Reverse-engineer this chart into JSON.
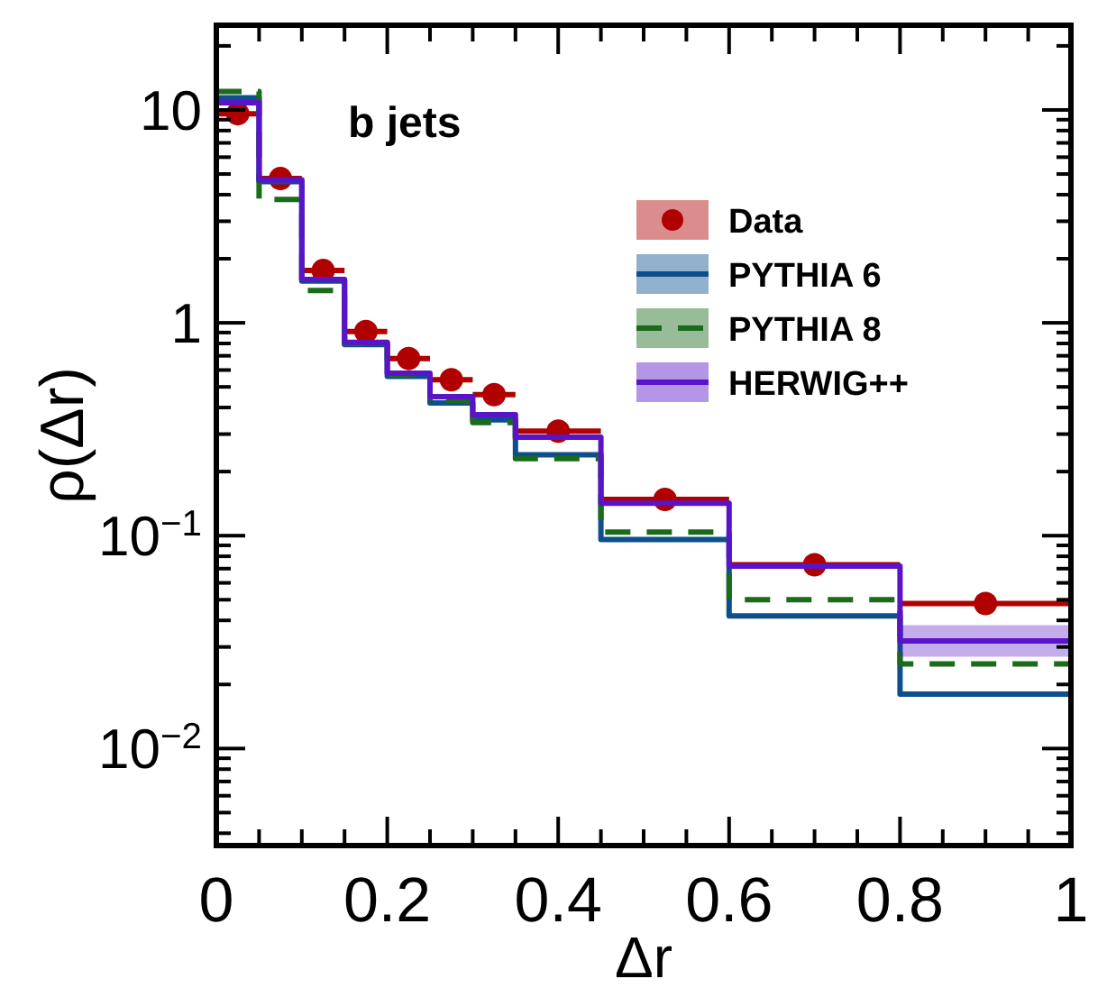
{
  "chart_data": {
    "type": "step",
    "annotations": [
      "b jets"
    ],
    "xlabel": "Δr",
    "ylabel": "ρ(Δr)",
    "xlim": [
      0,
      1
    ],
    "ylim": [
      0.0035,
      25
    ],
    "log": "y",
    "legend": "right",
    "grid": false,
    "xticks": [
      0,
      {
        "value": 0.05,
        "label": null
      },
      {
        "value": 0.1,
        "label": null
      },
      {
        "value": 0.15,
        "label": null
      },
      0.2,
      {
        "value": 0.25,
        "label": null
      },
      {
        "value": 0.3,
        "label": null
      },
      {
        "value": 0.35,
        "label": null
      },
      0.4,
      {
        "value": 0.45,
        "label": null
      },
      {
        "value": 0.5,
        "label": null
      },
      {
        "value": 0.55,
        "label": null
      },
      0.6,
      {
        "value": 0.65,
        "label": null
      },
      {
        "value": 0.7,
        "label": null
      },
      {
        "value": 0.75,
        "label": null
      },
      0.8,
      {
        "value": 0.85,
        "label": null
      },
      {
        "value": 0.9,
        "label": null
      },
      {
        "value": 0.95,
        "label": null
      },
      1
    ],
    "yticks": [
      {
        "value": 0.004,
        "label": null
      },
      {
        "value": 0.005,
        "label": null
      },
      {
        "value": 0.006,
        "label": null
      },
      {
        "value": 0.007,
        "label": null
      },
      {
        "value": 0.008,
        "label": null
      },
      {
        "value": 0.009,
        "label": null
      },
      {
        "value": 0.01,
        "label": "10$^{−2}$"
      },
      {
        "value": 0.02,
        "label": null
      },
      {
        "value": 0.03,
        "label": null
      },
      {
        "value": 0.04,
        "label": null
      },
      {
        "value": 0.05,
        "label": null
      },
      {
        "value": 0.06,
        "label": null
      },
      {
        "value": 0.07,
        "label": null
      },
      {
        "value": 0.08,
        "label": null
      },
      {
        "value": 0.09,
        "label": null
      },
      {
        "value": 0.1,
        "label": "10$^{−1}$"
      },
      {
        "value": 0.2,
        "label": null
      },
      {
        "value": 0.3,
        "label": null
      },
      {
        "value": 0.4,
        "label": null
      },
      {
        "value": 0.5,
        "label": null
      },
      {
        "value": 0.6,
        "label": null
      },
      {
        "value": 0.7,
        "label": null
      },
      {
        "value": 0.8,
        "label": null
      },
      {
        "value": 0.9,
        "label": null
      },
      1,
      {
        "value": 2,
        "label": null
      },
      {
        "value": 3,
        "label": null
      },
      {
        "value": 4,
        "label": null
      },
      {
        "value": 5,
        "label": null
      },
      {
        "value": 6,
        "label": null
      },
      {
        "value": 7,
        "label": null
      },
      {
        "value": 8,
        "label": null
      },
      {
        "value": 9,
        "label": null
      },
      10,
      {
        "value": 20,
        "label": null
      }
    ],
    "series": [
      {
        "name": "Data",
        "type": "scatter",
        "marker": "circle",
        "color": "#b00000",
        "x": [
          0.025,
          0.075,
          0.125,
          0.175,
          0.225,
          0.275,
          0.325,
          0.4,
          0.525,
          0.7,
          0.9
        ],
        "values": [
          9.6,
          4.76,
          1.76,
          0.91,
          0.68,
          0.54,
          0.46,
          0.31,
          0.148,
          0.073,
          0.048
        ],
        "xerrors": [
          0.025,
          0.025,
          0.025,
          0.025,
          0.025,
          0.025,
          0.025,
          0.05,
          0.075,
          0.1,
          0.1
        ]
      },
      {
        "name": "PYTHIA 6",
        "color": "#0d4f8b",
        "line_style": "solid",
        "x": [
          0,
          0.05,
          0.1,
          0.15,
          0.2,
          0.25,
          0.3,
          0.35,
          0.45,
          0.6,
          0.8,
          1
        ],
        "values": [
          11.4,
          4.6,
          1.57,
          0.79,
          0.56,
          0.42,
          0.35,
          0.24,
          0.096,
          0.042,
          0.018,
          0.018
        ]
      },
      {
        "name": "PYTHIA 8",
        "color": "#1a6b1a",
        "line_style": "dashed",
        "x": [
          0,
          0.05,
          0.1,
          0.15,
          0.2,
          0.25,
          0.3,
          0.35,
          0.45,
          0.6,
          0.8,
          1
        ],
        "values": [
          12.2,
          3.8,
          1.42,
          0.8,
          0.57,
          0.43,
          0.34,
          0.23,
          0.104,
          0.05,
          0.025,
          0.025
        ]
      },
      {
        "name": "HERWIG++",
        "color": "#5a14c8",
        "line_style": "solid",
        "x": [
          0,
          0.05,
          0.1,
          0.15,
          0.2,
          0.25,
          0.3,
          0.35,
          0.45,
          0.6,
          0.8,
          1
        ],
        "values": [
          10.8,
          4.7,
          1.6,
          0.81,
          0.58,
          0.45,
          0.37,
          0.29,
          0.142,
          0.072,
          0.032,
          0.032
        ],
        "lower": [
          null,
          null,
          null,
          null,
          null,
          null,
          null,
          null,
          null,
          null,
          0.027,
          0.027
        ],
        "upper": [
          null,
          null,
          null,
          null,
          null,
          null,
          null,
          null,
          null,
          null,
          0.038,
          0.038
        ]
      }
    ]
  }
}
